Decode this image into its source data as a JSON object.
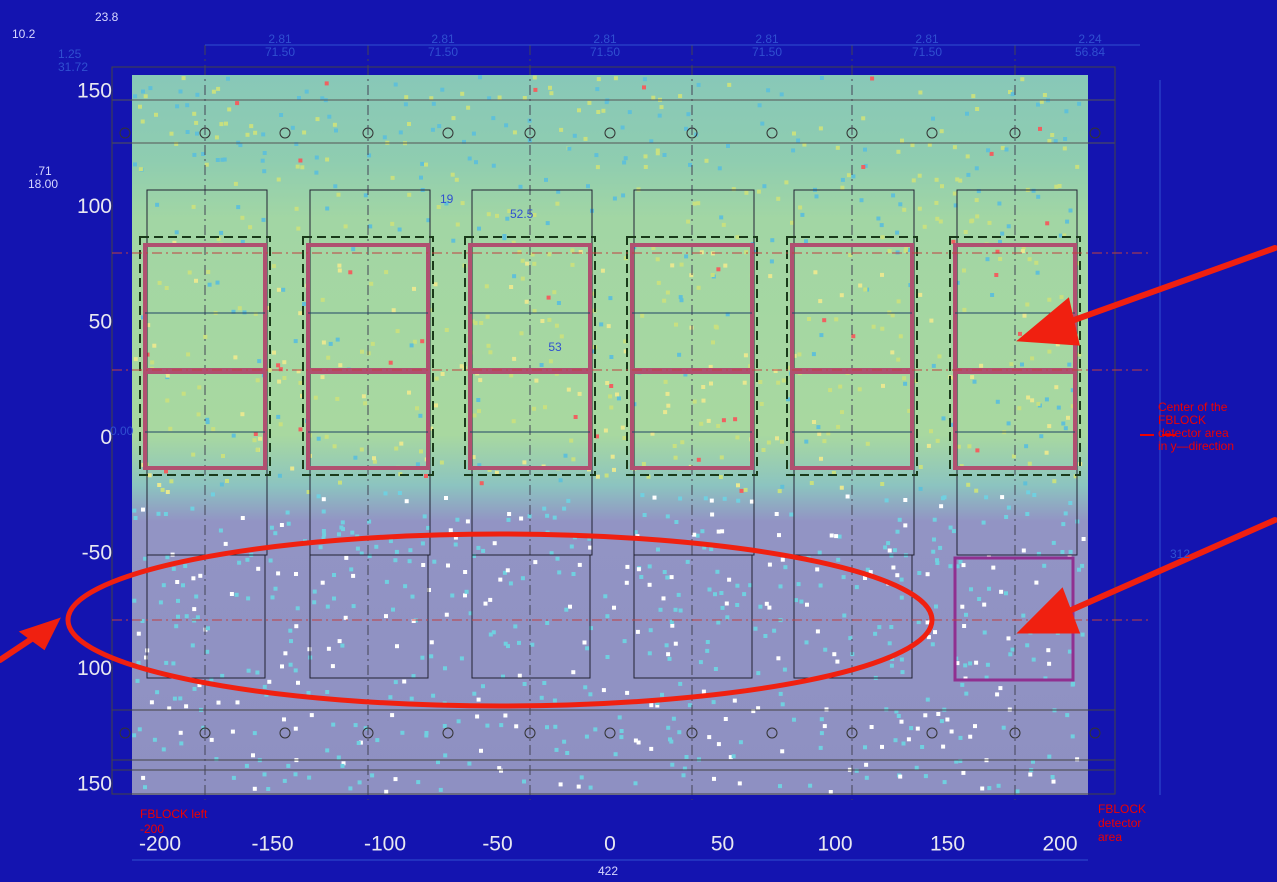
{
  "axes": {
    "x_ticks": [
      "-200",
      "-150",
      "-100",
      "-50",
      "0",
      "50",
      "100",
      "150",
      "200"
    ],
    "y_ticks": [
      "150",
      "100",
      "50",
      "0",
      "-50",
      "100",
      "150"
    ]
  },
  "dimensions": {
    "top_offset": "23.8",
    "left_offset": "10.2",
    "edge_a": "1.25",
    "edge_a_mm": "31.72",
    "edge_b": ".71",
    "edge_b_mm": "18.00",
    "pitch": [
      "2.81",
      "2.81",
      "2.81",
      "2.81",
      "2.81",
      "2.24"
    ],
    "pitch_mm": [
      "71.50",
      "71.50",
      "71.50",
      "71.50",
      "71.50",
      "56.84"
    ],
    "gap": "19",
    "module_width": "52.5",
    "module_height": "53",
    "center": "0.00",
    "height_total": "312",
    "width_total": "422"
  },
  "annotations": {
    "center_note": [
      "Center of the",
      "FBLOCK",
      "detector area",
      "in y—direction"
    ],
    "left_note": "FBLOCK left",
    "left_value": "-200",
    "area_note": [
      "FBLOCK",
      "detector",
      "area"
    ]
  }
}
